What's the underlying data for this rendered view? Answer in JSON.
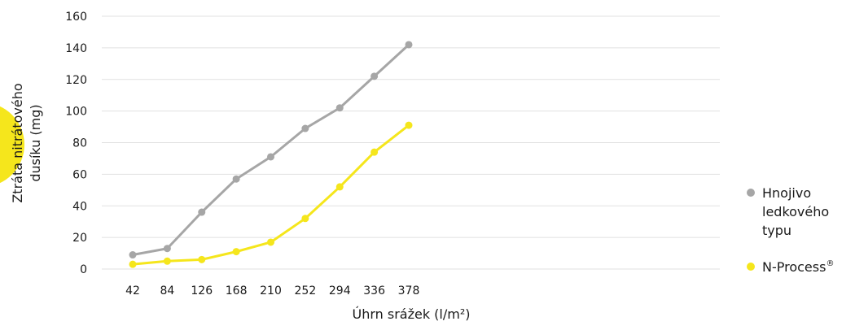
{
  "chart_data": {
    "type": "line",
    "xlabel": "Úhrn srážek (l/m²)",
    "ylabel_lines": [
      "Ztráta nitrátového",
      "dusíku (mg)"
    ],
    "categories": [
      "42",
      "84",
      "126",
      "168",
      "210",
      "252",
      "294",
      "336",
      "378"
    ],
    "yticks": [
      "0",
      "20",
      "40",
      "60",
      "80",
      "100",
      "120",
      "140",
      "160"
    ],
    "ylim": [
      0,
      160
    ],
    "grid": true,
    "legend_position": "right",
    "series": [
      {
        "name_lines": [
          "Hnojivo",
          "ledkového",
          "typu"
        ],
        "color": "#a6a6a6",
        "values": [
          9,
          13,
          36,
          57,
          71,
          89,
          102,
          122,
          142
        ]
      },
      {
        "name_lines": [
          "N-Process",
          "®"
        ],
        "color": "#f5e61c",
        "values": [
          3,
          5,
          6,
          11,
          17,
          32,
          52,
          74,
          91
        ]
      }
    ]
  }
}
